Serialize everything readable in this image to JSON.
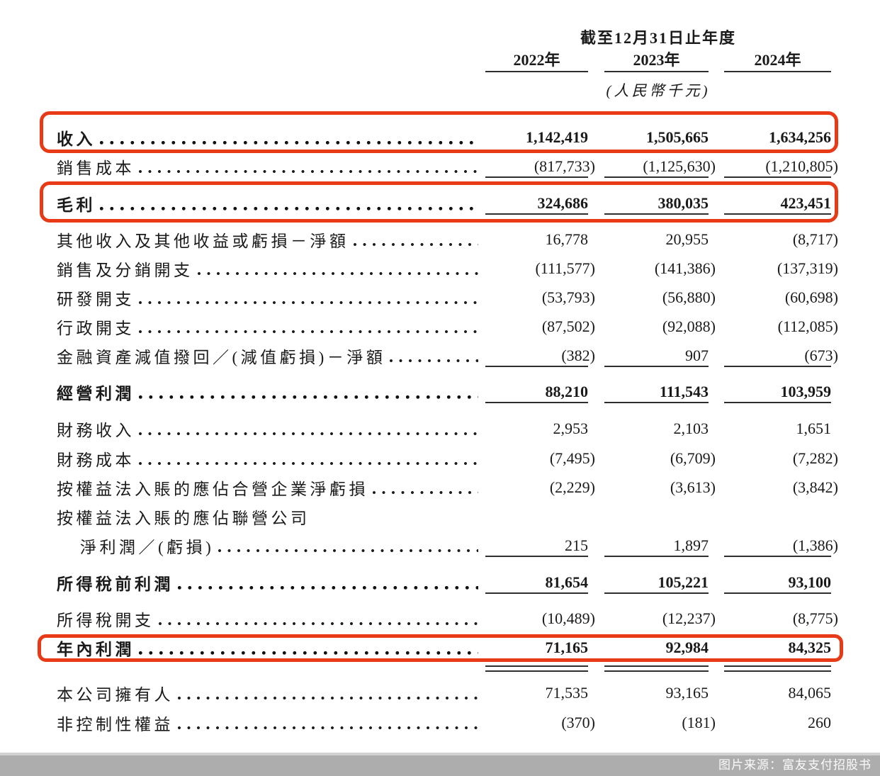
{
  "header": {
    "period_title": "截至12月31日止年度",
    "unit_note": "(人民幣千元)",
    "years": [
      "2022年",
      "2023年",
      "2024年"
    ]
  },
  "table": {
    "rows": [
      {
        "label": "收入",
        "values": [
          "1,142,419",
          "1,505,665",
          "1,634,256"
        ]
      },
      {
        "label": "銷售成本",
        "values": [
          "(817,733)",
          "(1,125,630)",
          "(1,210,805)"
        ]
      },
      {
        "label": "毛利",
        "values": [
          "324,686",
          "380,035",
          "423,451"
        ]
      },
      {
        "label": "其他收入及其他收益或虧損－淨額",
        "values": [
          "16,778",
          "20,955",
          "(8,717)"
        ]
      },
      {
        "label": "銷售及分銷開支",
        "values": [
          "(111,577)",
          "(141,386)",
          "(137,319)"
        ]
      },
      {
        "label": "研發開支",
        "values": [
          "(53,793)",
          "(56,880)",
          "(60,698)"
        ]
      },
      {
        "label": "行政開支",
        "values": [
          "(87,502)",
          "(92,088)",
          "(112,085)"
        ]
      },
      {
        "label": "金融資產減值撥回／(減值虧損)－淨額",
        "values": [
          "(382)",
          "907",
          "(673)"
        ]
      },
      {
        "label": "經營利潤",
        "values": [
          "88,210",
          "111,543",
          "103,959"
        ]
      },
      {
        "label": "財務收入",
        "values": [
          "2,953",
          "2,103",
          "1,651"
        ]
      },
      {
        "label": "財務成本",
        "values": [
          "(7,495)",
          "(6,709)",
          "(7,282)"
        ]
      },
      {
        "label": "按權益法入賬的應佔合營企業淨虧損",
        "values": [
          "(2,229)",
          "(3,613)",
          "(3,842)"
        ]
      },
      {
        "label": "按權益法入賬的應佔聯營公司",
        "values": null
      },
      {
        "label": "淨利潤／(虧損)",
        "values": [
          "215",
          "1,897",
          "(1,386)"
        ]
      },
      {
        "label": "所得稅前利潤",
        "values": [
          "81,654",
          "105,221",
          "93,100"
        ]
      },
      {
        "label": "所得稅開支",
        "values": [
          "(10,489)",
          "(12,237)",
          "(8,775)"
        ]
      },
      {
        "label": "年內利潤",
        "values": [
          "71,165",
          "92,984",
          "84,325"
        ]
      },
      {
        "label": "本公司擁有人",
        "values": [
          "71,535",
          "93,165",
          "84,065"
        ]
      },
      {
        "label": "非控制性權益",
        "values": [
          "(370)",
          "(181)",
          "260"
        ]
      }
    ]
  },
  "colors": {
    "highlight_red": "#e83a17",
    "source_bar_gray": "#adadad"
  },
  "footer": {
    "source_note": "图片来源：富友支付招股书"
  }
}
